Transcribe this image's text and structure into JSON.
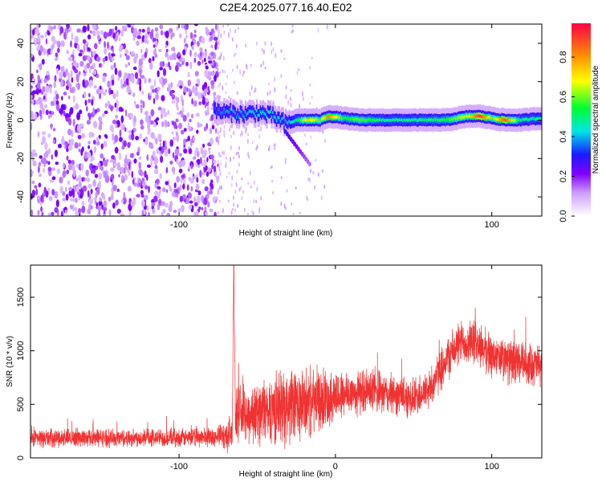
{
  "title": "C2E4.2025.077.16.40.E02",
  "chart_data": [
    {
      "type": "heatmap",
      "xlabel": "Height of straight line (km)",
      "ylabel": "Frequency (Hz)",
      "xlim": [
        -195,
        132
      ],
      "ylim": [
        -50,
        50
      ],
      "x_ticks": [
        -100,
        0,
        100
      ],
      "x_tick_labels": [
        "-100",
        "",
        "100"
      ],
      "y_ticks": [
        -40,
        -20,
        0,
        20,
        40
      ],
      "y_tick_labels": [
        "-40",
        "-20",
        "0",
        "20",
        "40"
      ],
      "colorbar": {
        "label": "Normalized spectral amplitude",
        "range": [
          0,
          0.97
        ],
        "ticks": [
          0.0,
          0.2,
          0.4,
          0.6,
          0.8
        ],
        "tick_labels": [
          "0.0",
          "0.2",
          "0.4",
          "0.6",
          "0.8"
        ]
      },
      "noise_region_x": [
        -195,
        -75
      ],
      "carrier_trace": [
        {
          "x": -78,
          "freq": 5,
          "amp": 0.35
        },
        {
          "x": -70,
          "freq": 4,
          "amp": 0.4
        },
        {
          "x": -60,
          "freq": 3,
          "amp": 0.4
        },
        {
          "x": -50,
          "freq": 4,
          "amp": 0.45
        },
        {
          "x": -40,
          "freq": 2,
          "amp": 0.45
        },
        {
          "x": -32,
          "freq": -2,
          "amp": 0.4
        },
        {
          "x": -25,
          "freq": 0,
          "amp": 0.5
        },
        {
          "x": -18,
          "freq": 0,
          "amp": 0.75
        },
        {
          "x": -10,
          "freq": 0,
          "amp": 0.6
        },
        {
          "x": -5,
          "freq": 2,
          "amp": 0.85
        },
        {
          "x": 5,
          "freq": 1,
          "amp": 0.55
        },
        {
          "x": 15,
          "freq": 0,
          "amp": 0.6
        },
        {
          "x": 30,
          "freq": 0,
          "amp": 0.5
        },
        {
          "x": 50,
          "freq": 0,
          "amp": 0.5
        },
        {
          "x": 70,
          "freq": 0,
          "amp": 0.55
        },
        {
          "x": 85,
          "freq": 2,
          "amp": 0.7
        },
        {
          "x": 92,
          "freq": 2,
          "amp": 0.95
        },
        {
          "x": 100,
          "freq": 1,
          "amp": 0.6
        },
        {
          "x": 108,
          "freq": 0,
          "amp": 0.9
        },
        {
          "x": 118,
          "freq": 0,
          "amp": 0.5
        },
        {
          "x": 132,
          "freq": 1,
          "amp": 0.5
        }
      ]
    },
    {
      "type": "line",
      "xlabel": "Height of straight line (km)",
      "ylabel": "SNR (10 * v/v)",
      "xlim": [
        -195,
        132
      ],
      "ylim": [
        0,
        1800
      ],
      "x_ticks": [
        -100,
        0,
        100
      ],
      "x_tick_labels": [
        "-100",
        "0",
        "100"
      ],
      "y_ticks": [
        0,
        500,
        1000,
        1500
      ],
      "y_tick_labels": [
        "0",
        "500",
        "1000",
        "1500"
      ],
      "color": "#ef3333",
      "series": [
        {
          "x": [
            -195,
            -180,
            -160,
            -140,
            -120,
            -100,
            -90,
            -80,
            -75,
            -66,
            -65,
            -64,
            -55,
            -45,
            -35,
            -25,
            -15,
            -5,
            0,
            10,
            20,
            30,
            40,
            50,
            60,
            70,
            80,
            90,
            100,
            110,
            120,
            132
          ],
          "mean": [
            180,
            185,
            190,
            185,
            190,
            185,
            190,
            200,
            200,
            220,
            1800,
            420,
            400,
            440,
            480,
            480,
            520,
            560,
            580,
            600,
            620,
            600,
            580,
            560,
            640,
            900,
            1080,
            1080,
            950,
            900,
            880,
            860
          ],
          "spread": [
            90,
            90,
            90,
            90,
            90,
            90,
            90,
            100,
            100,
            200,
            0,
            250,
            300,
            330,
            380,
            380,
            330,
            300,
            260,
            230,
            220,
            210,
            200,
            200,
            200,
            220,
            220,
            220,
            220,
            220,
            220,
            200
          ]
        }
      ]
    }
  ]
}
